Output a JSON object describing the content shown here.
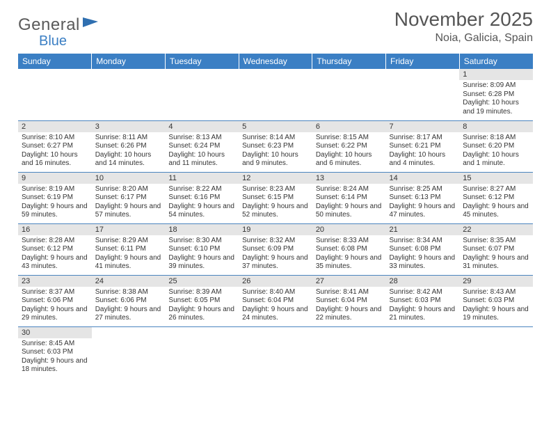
{
  "logo": {
    "general": "General",
    "blue": "Blue"
  },
  "title": "November 2025",
  "location": "Noia, Galicia, Spain",
  "colors": {
    "header_bg": "#3b7fc4",
    "header_text": "#ffffff",
    "divider": "#4a84bf",
    "daynum_bg": "#e5e5e5",
    "text": "#333333",
    "title_text": "#555555",
    "logo_gray": "#5a5a5a",
    "logo_blue": "#3b7fc4",
    "background": "#ffffff"
  },
  "typography": {
    "month_title_pt": 28,
    "location_pt": 16,
    "weekday_pt": 12,
    "cell_pt": 10,
    "font_family": "Arial"
  },
  "weekdays": [
    "Sunday",
    "Monday",
    "Tuesday",
    "Wednesday",
    "Thursday",
    "Friday",
    "Saturday"
  ],
  "grid": [
    [
      {
        "n": "",
        "t": ""
      },
      {
        "n": "",
        "t": ""
      },
      {
        "n": "",
        "t": ""
      },
      {
        "n": "",
        "t": ""
      },
      {
        "n": "",
        "t": ""
      },
      {
        "n": "",
        "t": ""
      },
      {
        "n": "1",
        "t": "Sunrise: 8:09 AM\nSunset: 6:28 PM\nDaylight: 10 hours and 19 minutes."
      }
    ],
    [
      {
        "n": "2",
        "t": "Sunrise: 8:10 AM\nSunset: 6:27 PM\nDaylight: 10 hours and 16 minutes."
      },
      {
        "n": "3",
        "t": "Sunrise: 8:11 AM\nSunset: 6:26 PM\nDaylight: 10 hours and 14 minutes."
      },
      {
        "n": "4",
        "t": "Sunrise: 8:13 AM\nSunset: 6:24 PM\nDaylight: 10 hours and 11 minutes."
      },
      {
        "n": "5",
        "t": "Sunrise: 8:14 AM\nSunset: 6:23 PM\nDaylight: 10 hours and 9 minutes."
      },
      {
        "n": "6",
        "t": "Sunrise: 8:15 AM\nSunset: 6:22 PM\nDaylight: 10 hours and 6 minutes."
      },
      {
        "n": "7",
        "t": "Sunrise: 8:17 AM\nSunset: 6:21 PM\nDaylight: 10 hours and 4 minutes."
      },
      {
        "n": "8",
        "t": "Sunrise: 8:18 AM\nSunset: 6:20 PM\nDaylight: 10 hours and 1 minute."
      }
    ],
    [
      {
        "n": "9",
        "t": "Sunrise: 8:19 AM\nSunset: 6:19 PM\nDaylight: 9 hours and 59 minutes."
      },
      {
        "n": "10",
        "t": "Sunrise: 8:20 AM\nSunset: 6:17 PM\nDaylight: 9 hours and 57 minutes."
      },
      {
        "n": "11",
        "t": "Sunrise: 8:22 AM\nSunset: 6:16 PM\nDaylight: 9 hours and 54 minutes."
      },
      {
        "n": "12",
        "t": "Sunrise: 8:23 AM\nSunset: 6:15 PM\nDaylight: 9 hours and 52 minutes."
      },
      {
        "n": "13",
        "t": "Sunrise: 8:24 AM\nSunset: 6:14 PM\nDaylight: 9 hours and 50 minutes."
      },
      {
        "n": "14",
        "t": "Sunrise: 8:25 AM\nSunset: 6:13 PM\nDaylight: 9 hours and 47 minutes."
      },
      {
        "n": "15",
        "t": "Sunrise: 8:27 AM\nSunset: 6:12 PM\nDaylight: 9 hours and 45 minutes."
      }
    ],
    [
      {
        "n": "16",
        "t": "Sunrise: 8:28 AM\nSunset: 6:12 PM\nDaylight: 9 hours and 43 minutes."
      },
      {
        "n": "17",
        "t": "Sunrise: 8:29 AM\nSunset: 6:11 PM\nDaylight: 9 hours and 41 minutes."
      },
      {
        "n": "18",
        "t": "Sunrise: 8:30 AM\nSunset: 6:10 PM\nDaylight: 9 hours and 39 minutes."
      },
      {
        "n": "19",
        "t": "Sunrise: 8:32 AM\nSunset: 6:09 PM\nDaylight: 9 hours and 37 minutes."
      },
      {
        "n": "20",
        "t": "Sunrise: 8:33 AM\nSunset: 6:08 PM\nDaylight: 9 hours and 35 minutes."
      },
      {
        "n": "21",
        "t": "Sunrise: 8:34 AM\nSunset: 6:08 PM\nDaylight: 9 hours and 33 minutes."
      },
      {
        "n": "22",
        "t": "Sunrise: 8:35 AM\nSunset: 6:07 PM\nDaylight: 9 hours and 31 minutes."
      }
    ],
    [
      {
        "n": "23",
        "t": "Sunrise: 8:37 AM\nSunset: 6:06 PM\nDaylight: 9 hours and 29 minutes."
      },
      {
        "n": "24",
        "t": "Sunrise: 8:38 AM\nSunset: 6:06 PM\nDaylight: 9 hours and 27 minutes."
      },
      {
        "n": "25",
        "t": "Sunrise: 8:39 AM\nSunset: 6:05 PM\nDaylight: 9 hours and 26 minutes."
      },
      {
        "n": "26",
        "t": "Sunrise: 8:40 AM\nSunset: 6:04 PM\nDaylight: 9 hours and 24 minutes."
      },
      {
        "n": "27",
        "t": "Sunrise: 8:41 AM\nSunset: 6:04 PM\nDaylight: 9 hours and 22 minutes."
      },
      {
        "n": "28",
        "t": "Sunrise: 8:42 AM\nSunset: 6:03 PM\nDaylight: 9 hours and 21 minutes."
      },
      {
        "n": "29",
        "t": "Sunrise: 8:43 AM\nSunset: 6:03 PM\nDaylight: 9 hours and 19 minutes."
      }
    ],
    [
      {
        "n": "30",
        "t": "Sunrise: 8:45 AM\nSunset: 6:03 PM\nDaylight: 9 hours and 18 minutes."
      },
      {
        "n": "",
        "t": ""
      },
      {
        "n": "",
        "t": ""
      },
      {
        "n": "",
        "t": ""
      },
      {
        "n": "",
        "t": ""
      },
      {
        "n": "",
        "t": ""
      },
      {
        "n": "",
        "t": ""
      }
    ]
  ]
}
